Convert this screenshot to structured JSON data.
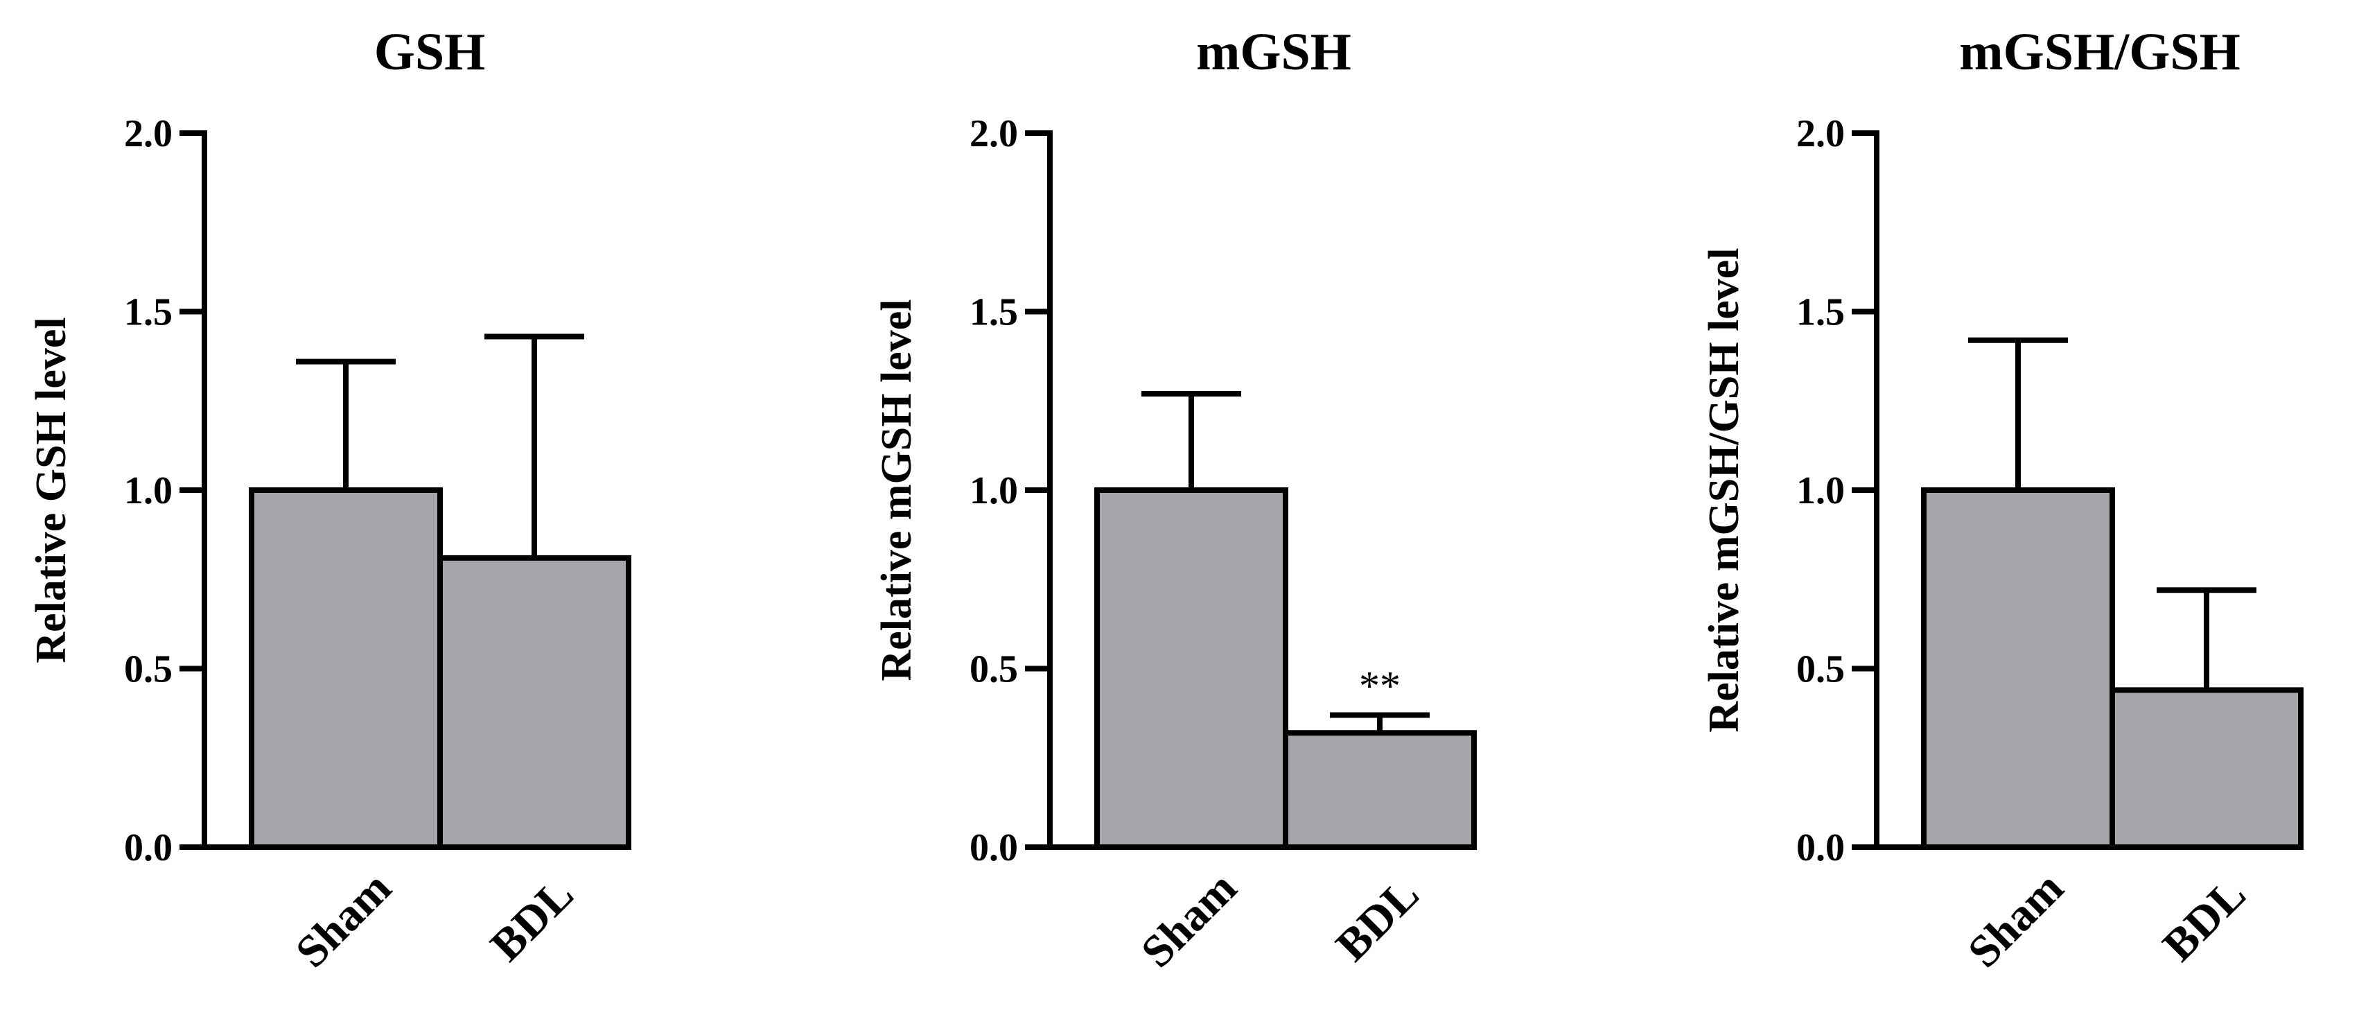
{
  "colors": {
    "bar_fill": "#a6a6aa",
    "axis": "#000000"
  },
  "chart_data": [
    {
      "type": "bar",
      "title": "GSH",
      "ylabel": "Relative GSH level",
      "xlabel": "",
      "categories": [
        "Sham",
        "BDL"
      ],
      "values": [
        1.0,
        0.81
      ],
      "error_upper": [
        1.36,
        1.43
      ],
      "annotations": [
        "",
        ""
      ],
      "ylim": [
        0,
        2.0
      ],
      "yticks": [
        "0.0",
        "0.5",
        "1.0",
        "1.5",
        "2.0"
      ],
      "grid": false,
      "legend": "none"
    },
    {
      "type": "bar",
      "title": "mGSH",
      "ylabel": "Relative mGSH level",
      "xlabel": "",
      "categories": [
        "Sham",
        "BDL"
      ],
      "values": [
        1.0,
        0.32
      ],
      "error_upper": [
        1.27,
        0.37
      ],
      "annotations": [
        "",
        "**"
      ],
      "ylim": [
        0,
        2.0
      ],
      "yticks": [
        "0.0",
        "0.5",
        "1.0",
        "1.5",
        "2.0"
      ],
      "grid": false,
      "legend": "none"
    },
    {
      "type": "bar",
      "title": "mGSH/GSH",
      "ylabel": "Relative mGSH/GSH level",
      "xlabel": "",
      "categories": [
        "Sham",
        "BDL"
      ],
      "values": [
        1.0,
        0.44
      ],
      "error_upper": [
        1.42,
        0.72
      ],
      "annotations": [
        "",
        ""
      ],
      "ylim": [
        0,
        2.0
      ],
      "yticks": [
        "0.0",
        "0.5",
        "1.0",
        "1.5",
        "2.0"
      ],
      "grid": false,
      "legend": "none"
    }
  ]
}
